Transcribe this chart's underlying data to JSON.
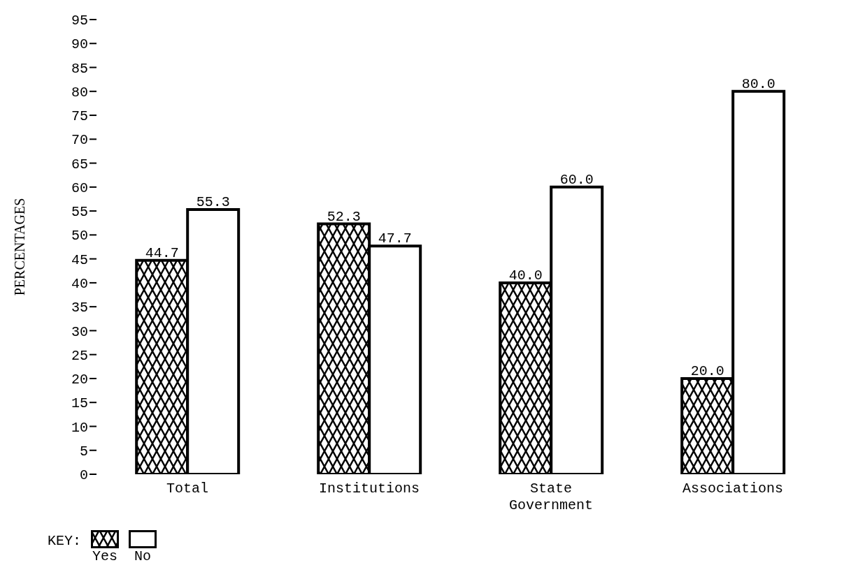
{
  "chart_data": {
    "type": "bar",
    "ylabel": "PERCENTAGES",
    "legend_title": "KEY:",
    "categories": [
      "Total",
      "Institutions",
      "State Government",
      "Associations"
    ],
    "series": [
      {
        "name": "Yes",
        "color": "#000000",
        "values": [
          44.7,
          52.3,
          40.0,
          20.0
        ],
        "value_labels": [
          "44.7",
          "52.3",
          "40.0",
          "20.0"
        ]
      },
      {
        "name": "No",
        "color": "#ffffff",
        "values": [
          55.3,
          47.7,
          60.0,
          80.0
        ],
        "value_labels": [
          "55.3",
          "47.7",
          "60.0",
          "80.0"
        ]
      }
    ],
    "ylim": [
      0,
      95
    ],
    "yticks": [
      0,
      5,
      10,
      15,
      20,
      25,
      30,
      35,
      40,
      45,
      50,
      55,
      60,
      65,
      70,
      75,
      80,
      85,
      90,
      95
    ],
    "grid": false,
    "legend": "bottom left"
  }
}
